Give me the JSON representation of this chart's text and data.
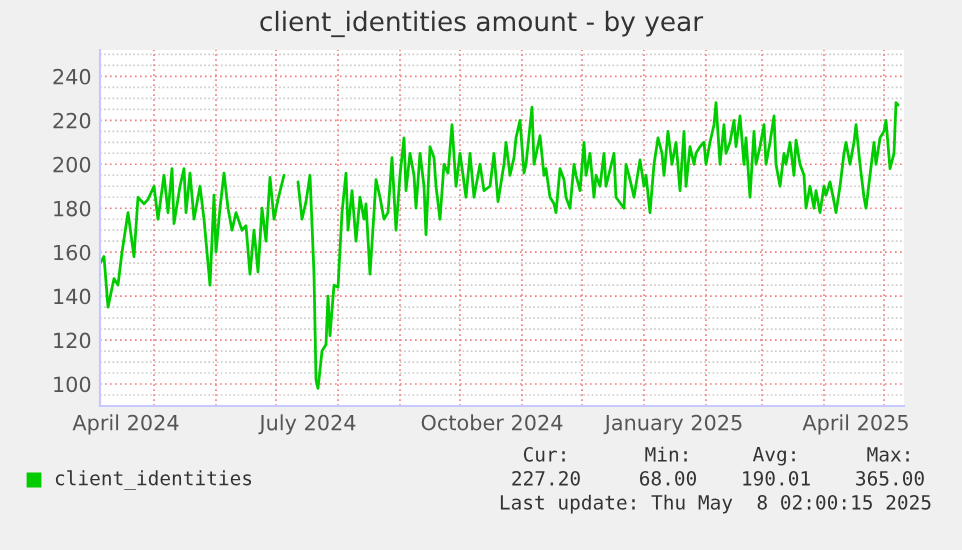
{
  "chart_data": {
    "type": "line",
    "title": "client_identities amount - by year",
    "x": [
      "2024-04-04",
      "2024-04-06",
      "2024-04-08",
      "2024-04-11",
      "2024-04-13",
      "2024-04-15",
      "2024-04-18",
      "2024-04-21",
      "2024-04-23",
      "2024-04-26",
      "2024-04-28",
      "2024-05-01",
      "2024-05-03",
      "2024-05-06",
      "2024-05-08",
      "2024-05-10",
      "2024-05-11",
      "2024-05-14",
      "2024-05-16",
      "2024-05-17",
      "2024-05-19",
      "2024-05-21",
      "2024-05-24",
      "2024-05-26",
      "2024-05-27",
      "2024-05-29",
      "2024-05-31",
      "2024-06-01",
      "2024-06-03",
      "2024-06-05",
      "2024-06-07",
      "2024-06-09",
      "2024-06-11",
      "2024-06-14",
      "2024-06-16",
      "2024-06-18",
      "2024-06-20",
      "2024-06-22",
      "2024-06-24",
      "2024-06-26",
      "2024-06-28",
      "2024-06-30",
      "2024-07-02",
      "2024-07-05",
      "2024-07-08",
      "2024-07-12",
      "2024-07-14",
      "2024-07-16",
      "2024-07-18",
      "2024-07-20",
      "2024-07-21",
      "2024-07-22",
      "2024-07-24",
      "2024-07-26",
      "2024-07-27",
      "2024-07-28",
      "2024-07-30",
      "2024-08-01",
      "2024-08-03",
      "2024-08-05",
      "2024-08-06",
      "2024-08-08",
      "2024-08-10",
      "2024-08-12",
      "2024-08-14",
      "2024-08-15",
      "2024-08-17",
      "2024-08-19",
      "2024-08-20",
      "2024-08-22",
      "2024-08-24",
      "2024-08-26",
      "2024-08-28",
      "2024-08-30",
      "2024-09-01",
      "2024-09-03",
      "2024-09-04",
      "2024-09-06",
      "2024-09-08",
      "2024-09-09",
      "2024-09-11",
      "2024-09-13",
      "2024-09-14",
      "2024-09-16",
      "2024-09-18",
      "2024-09-19",
      "2024-09-21",
      "2024-09-23",
      "2024-09-25",
      "2024-09-27",
      "2024-09-29",
      "2024-10-01",
      "2024-10-04",
      "2024-10-06",
      "2024-10-08",
      "2024-10-11",
      "2024-10-13",
      "2024-10-16",
      "2024-10-18",
      "2024-10-20",
      "2024-10-23",
      "2024-10-24",
      "2024-10-26",
      "2024-10-28",
      "2024-10-29",
      "2024-10-31",
      "2024-11-02",
      "2024-11-03",
      "2024-11-06",
      "2024-11-07",
      "2024-11-10",
      "2024-11-12",
      "2024-11-13",
      "2024-11-15",
      "2024-11-17",
      "2024-11-18",
      "2024-11-20",
      "2024-11-22",
      "2024-11-23",
      "2024-11-25",
      "2024-11-27",
      "2024-11-28",
      "2024-11-30",
      "2024-12-02",
      "2024-12-03",
      "2024-12-05",
      "2024-12-07",
      "2024-12-08",
      "2024-12-10",
      "2024-12-12",
      "2024-12-13",
      "2024-12-17",
      "2024-12-18",
      "2024-12-22",
      "2024-12-23",
      "2024-12-25",
      "2024-12-27",
      "2024-12-30",
      "2025-01-01",
      "2025-01-02",
      "2025-01-04",
      "2025-01-06",
      "2025-01-08",
      "2025-01-10",
      "2025-01-11",
      "2025-01-13",
      "2025-01-15",
      "2025-01-17",
      "2025-01-19",
      "2025-01-21",
      "2025-01-22",
      "2025-01-24",
      "2025-01-26",
      "2025-01-27",
      "2025-01-29",
      "2025-01-31",
      "2025-02-01",
      "2025-02-03",
      "2025-02-05",
      "2025-02-06",
      "2025-02-08",
      "2025-02-10",
      "2025-02-11",
      "2025-02-13",
      "2025-02-15",
      "2025-02-16",
      "2025-02-18",
      "2025-02-20",
      "2025-02-21",
      "2025-02-23",
      "2025-02-25",
      "2025-02-26",
      "2025-02-28",
      "2025-03-02",
      "2025-03-03",
      "2025-03-05",
      "2025-03-07",
      "2025-03-08",
      "2025-03-10",
      "2025-03-12",
      "2025-03-13",
      "2025-03-15",
      "2025-03-17",
      "2025-03-18",
      "2025-03-20",
      "2025-03-22",
      "2025-03-23",
      "2025-03-25",
      "2025-03-27",
      "2025-03-28",
      "2025-03-30",
      "2025-04-01",
      "2025-04-02",
      "2025-04-04",
      "2025-04-06",
      "2025-04-07",
      "2025-04-09",
      "2025-04-11",
      "2025-04-12",
      "2025-04-14",
      "2025-04-16",
      "2025-04-17",
      "2025-04-19",
      "2025-04-21",
      "2025-04-22",
      "2025-04-24",
      "2025-04-26",
      "2025-04-27",
      "2025-04-29",
      "2025-05-01",
      "2025-05-02",
      "2025-05-04",
      "2025-05-06",
      "2025-05-07",
      "2025-05-08"
    ],
    "series": [
      {
        "name": "client_identities",
        "color": "#00cc00",
        "values": [
          155,
          158,
          135,
          148,
          145,
          160,
          178,
          158,
          185,
          182,
          184,
          190,
          175,
          195,
          178,
          198,
          173,
          190,
          198,
          178,
          196,
          175,
          190,
          175,
          165,
          145,
          186,
          160,
          180,
          196,
          180,
          170,
          178,
          170,
          172,
          150,
          170,
          151,
          180,
          165,
          194,
          175,
          184,
          195,
          null,
          192,
          175,
          183,
          195,
          150,
          102,
          98,
          115,
          118,
          140,
          122,
          145,
          144,
          178,
          196,
          170,
          188,
          165,
          185,
          175,
          182,
          150,
          178,
          193,
          185,
          175,
          178,
          203,
          170,
          195,
          212,
          188,
          205,
          195,
          180,
          205,
          190,
          168,
          208,
          203,
          190,
          175,
          200,
          196,
          218,
          190,
          205,
          185,
          205,
          185,
          200,
          188,
          190,
          205,
          183,
          200,
          210,
          195,
          203,
          212,
          220,
          196,
          200,
          226,
          200,
          213,
          195,
          198,
          185,
          182,
          178,
          198,
          193,
          185,
          180,
          200,
          195,
          188,
          210,
          195,
          205,
          185,
          195,
          190,
          205,
          190,
          205,
          185,
          180,
          200,
          193,
          185,
          202,
          190,
          195,
          178,
          200,
          212,
          205,
          195,
          215,
          200,
          210,
          188,
          215,
          190,
          208,
          200,
          205,
          208,
          210,
          200,
          210,
          218,
          228,
          200,
          218,
          205,
          210,
          220,
          208,
          222,
          200,
          212,
          185,
          215,
          200,
          208,
          218,
          200,
          210,
          222,
          200,
          190,
          205,
          200,
          210,
          195,
          211,
          200,
          195,
          180,
          190,
          180,
          188,
          178,
          190,
          186,
          192,
          183,
          178,
          190,
          205,
          210,
          200,
          210,
          218,
          200,
          185,
          180,
          195,
          210,
          200,
          212,
          215,
          220,
          198,
          205,
          228,
          227
        ]
      }
    ],
    "xlim": [
      "2024-04-04",
      "2025-05-11"
    ],
    "xticks": [
      {
        "value": "2024-04-17",
        "label": "April 2024"
      },
      {
        "value": "2024-05-01",
        "label": null
      },
      {
        "value": "2024-06-01",
        "label": null
      },
      {
        "value": "2024-07-01",
        "label": null
      },
      {
        "value": "2024-07-17",
        "label": "July 2024"
      },
      {
        "value": "2024-08-01",
        "label": null
      },
      {
        "value": "2024-09-01",
        "label": null
      },
      {
        "value": "2024-10-01",
        "label": null
      },
      {
        "value": "2024-10-17",
        "label": "October 2024"
      },
      {
        "value": "2024-11-01",
        "label": null
      },
      {
        "value": "2024-12-01",
        "label": null
      },
      {
        "value": "2025-01-01",
        "label": null
      },
      {
        "value": "2025-01-16",
        "label": "January 2025"
      },
      {
        "value": "2025-02-01",
        "label": null
      },
      {
        "value": "2025-03-01",
        "label": null
      },
      {
        "value": "2025-04-01",
        "label": null
      },
      {
        "value": "2025-04-17",
        "label": "April 2025"
      },
      {
        "value": "2025-05-01",
        "label": null
      }
    ],
    "ylim": [
      90,
      252
    ],
    "yticks": [
      100,
      120,
      140,
      160,
      180,
      200,
      220,
      240
    ],
    "grid": true,
    "legend": "bottom",
    "annotations": [
      "Cur:",
      "Min:",
      "Avg:",
      "Max:",
      "227.20",
      "68.00",
      "190.01",
      "365.00",
      "Last update: Thu May  8 02:00:15 2025"
    ]
  }
}
